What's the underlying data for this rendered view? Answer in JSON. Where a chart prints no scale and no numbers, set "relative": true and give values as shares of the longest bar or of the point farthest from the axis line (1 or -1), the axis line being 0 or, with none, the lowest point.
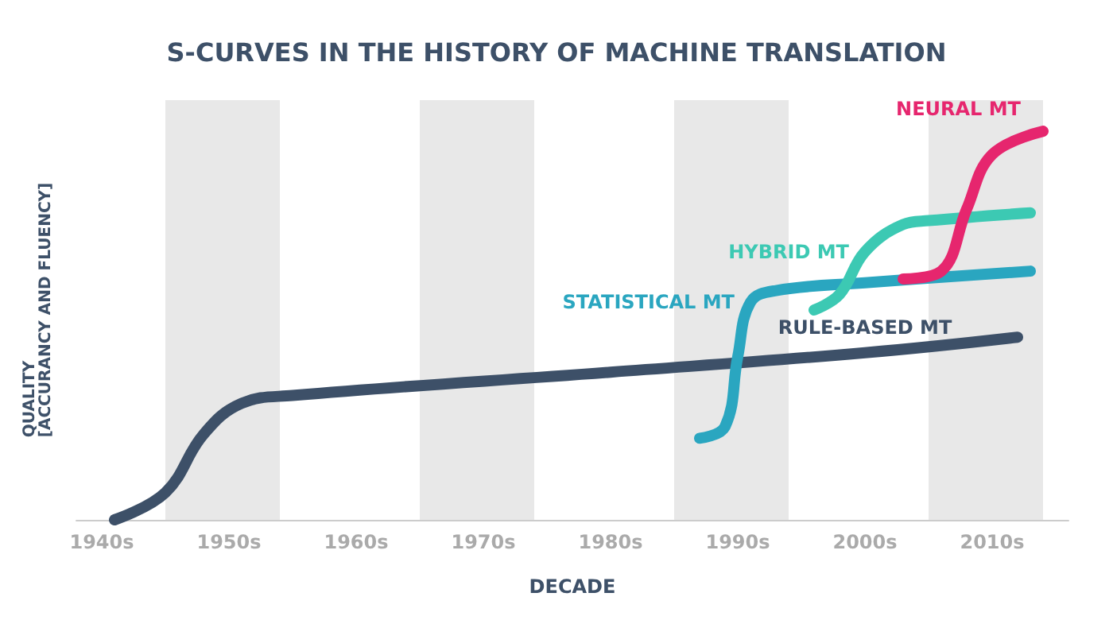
{
  "chart_data": {
    "type": "line",
    "title": "S-CURVES IN THE HISTORY OF MACHINE TRANSLATION",
    "xlabel": "DECADE",
    "ylabel": "QUALITY\n[ACCURANCY AND FLUENCY]",
    "relative": true,
    "xlim": [
      1938,
      2016
    ],
    "xticks": [
      {
        "value": 1940,
        "label": "1940s"
      },
      {
        "value": 1950,
        "label": "1950s"
      },
      {
        "value": 1960,
        "label": "1960s"
      },
      {
        "value": 1970,
        "label": "1970s"
      },
      {
        "value": 1980,
        "label": "1980s"
      },
      {
        "value": 1990,
        "label": "1990s"
      },
      {
        "value": 2000,
        "label": "2000s"
      },
      {
        "value": 2010,
        "label": "2010s"
      }
    ],
    "grid": false,
    "legend": false,
    "marker": "none",
    "line_style": "solid",
    "bands": [
      {
        "axis": "x",
        "from": 1945,
        "to": 1954,
        "color": "#e8e8e8"
      },
      {
        "axis": "x",
        "from": 1965,
        "to": 1974,
        "color": "#e8e8e8"
      },
      {
        "axis": "x",
        "from": 1985,
        "to": 1994,
        "color": "#e8e8e8"
      },
      {
        "axis": "x",
        "from": 2005,
        "to": 2014,
        "color": "#e8e8e8"
      }
    ],
    "series": [
      {
        "name": "RULE-BASED MT",
        "color": "#3d5068",
        "x": [
          1941,
          1945,
          1948,
          1951,
          1955,
          1980,
          2000,
          2012
        ],
        "values": [
          0,
          0.07,
          0.22,
          0.3,
          0.32,
          0.38,
          0.43,
          0.47
        ]
      },
      {
        "name": "STATISTICAL MT",
        "color": "#2aa6c0",
        "x": [
          1987,
          1989,
          1990,
          1991,
          1993,
          2000,
          2013
        ],
        "values": [
          0.21,
          0.24,
          0.42,
          0.56,
          0.59,
          0.61,
          0.64
        ]
      },
      {
        "name": "HYBRID MT",
        "color": "#3cc9b3",
        "x": [
          1996,
          1998,
          2000,
          2003,
          2005,
          2013
        ],
        "values": [
          0.54,
          0.58,
          0.69,
          0.76,
          0.77,
          0.79
        ]
      },
      {
        "name": "NEURAL MT",
        "color": "#e6266e",
        "x": [
          2003,
          2006,
          2008,
          2010,
          2014
        ],
        "values": [
          0.62,
          0.64,
          0.8,
          0.94,
          1
        ]
      }
    ]
  }
}
